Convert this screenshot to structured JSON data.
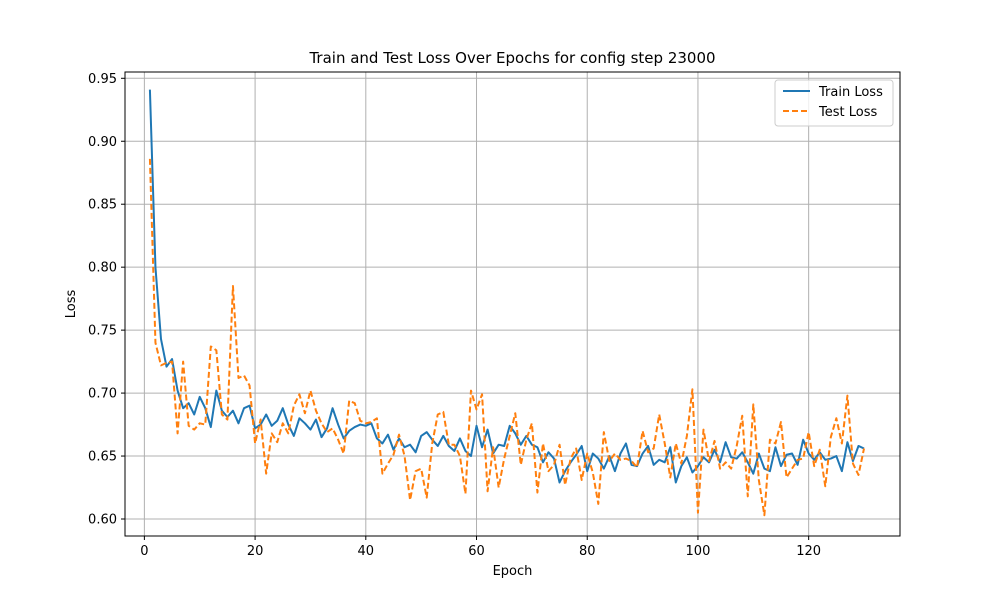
{
  "chart_data": {
    "type": "line",
    "title": "Train and Test Loss Over Epochs for config step 23000",
    "xlabel": "Epoch",
    "ylabel": "Loss",
    "xlim": [
      -3.5,
      136.5
    ],
    "ylim": [
      0.5865,
      0.955
    ],
    "xticks": [
      0,
      20,
      40,
      60,
      80,
      100,
      120
    ],
    "yticks": [
      0.6,
      0.65,
      0.7,
      0.75,
      0.8,
      0.85,
      0.9,
      0.95
    ],
    "xtick_labels": [
      "0",
      "20",
      "40",
      "60",
      "80",
      "100",
      "120"
    ],
    "ytick_labels": [
      "0.60",
      "0.65",
      "0.70",
      "0.75",
      "0.80",
      "0.85",
      "0.90",
      "0.95"
    ],
    "grid": true,
    "legend": "top-right",
    "series": [
      {
        "name": "Train Loss",
        "color": "#1f77b4",
        "dash": "solid",
        "values": [
          0.941,
          0.8,
          0.743,
          0.721,
          0.727,
          0.702,
          0.688,
          0.692,
          0.683,
          0.697,
          0.688,
          0.673,
          0.702,
          0.686,
          0.681,
          0.686,
          0.676,
          0.688,
          0.69,
          0.672,
          0.675,
          0.683,
          0.674,
          0.678,
          0.688,
          0.675,
          0.666,
          0.68,
          0.676,
          0.671,
          0.679,
          0.665,
          0.672,
          0.688,
          0.675,
          0.664,
          0.67,
          0.673,
          0.675,
          0.674,
          0.676,
          0.664,
          0.66,
          0.667,
          0.655,
          0.664,
          0.657,
          0.659,
          0.653,
          0.666,
          0.669,
          0.663,
          0.658,
          0.666,
          0.658,
          0.654,
          0.664,
          0.654,
          0.65,
          0.674,
          0.657,
          0.671,
          0.652,
          0.659,
          0.658,
          0.674,
          0.668,
          0.659,
          0.666,
          0.659,
          0.657,
          0.645,
          0.653,
          0.648,
          0.629,
          0.638,
          0.645,
          0.651,
          0.658,
          0.638,
          0.652,
          0.648,
          0.64,
          0.65,
          0.638,
          0.652,
          0.66,
          0.643,
          0.642,
          0.652,
          0.658,
          0.643,
          0.647,
          0.645,
          0.657,
          0.629,
          0.642,
          0.649,
          0.637,
          0.642,
          0.649,
          0.645,
          0.655,
          0.645,
          0.661,
          0.649,
          0.648,
          0.653,
          0.645,
          0.636,
          0.652,
          0.64,
          0.638,
          0.657,
          0.642,
          0.651,
          0.652,
          0.643,
          0.663,
          0.652,
          0.647,
          0.653,
          0.647,
          0.648,
          0.65,
          0.638,
          0.661,
          0.646,
          0.658,
          0.656
        ]
      },
      {
        "name": "Test Loss",
        "color": "#ff7f0e",
        "dash": "dashed",
        "values": [
          0.886,
          0.74,
          0.722,
          0.724,
          0.725,
          0.668,
          0.725,
          0.674,
          0.671,
          0.676,
          0.675,
          0.737,
          0.734,
          0.683,
          0.679,
          0.785,
          0.712,
          0.714,
          0.706,
          0.66,
          0.679,
          0.636,
          0.668,
          0.661,
          0.676,
          0.668,
          0.69,
          0.699,
          0.684,
          0.702,
          0.686,
          0.676,
          0.669,
          0.672,
          0.663,
          0.652,
          0.694,
          0.692,
          0.678,
          0.676,
          0.677,
          0.68,
          0.636,
          0.644,
          0.651,
          0.667,
          0.65,
          0.615,
          0.638,
          0.64,
          0.617,
          0.66,
          0.683,
          0.685,
          0.659,
          0.659,
          0.65,
          0.62,
          0.702,
          0.687,
          0.699,
          0.622,
          0.657,
          0.625,
          0.648,
          0.666,
          0.684,
          0.643,
          0.663,
          0.676,
          0.621,
          0.66,
          0.638,
          0.643,
          0.659,
          0.627,
          0.648,
          0.656,
          0.631,
          0.652,
          0.637,
          0.612,
          0.669,
          0.646,
          0.652,
          0.647,
          0.648,
          0.646,
          0.641,
          0.67,
          0.653,
          0.656,
          0.683,
          0.66,
          0.633,
          0.66,
          0.644,
          0.666,
          0.703,
          0.605,
          0.671,
          0.646,
          0.662,
          0.64,
          0.645,
          0.64,
          0.658,
          0.682,
          0.618,
          0.691,
          0.631,
          0.603,
          0.663,
          0.66,
          0.677,
          0.633,
          0.64,
          0.647,
          0.648,
          0.669,
          0.642,
          0.655,
          0.626,
          0.665,
          0.68,
          0.66,
          0.698,
          0.644,
          0.635,
          0.656
        ]
      }
    ]
  }
}
